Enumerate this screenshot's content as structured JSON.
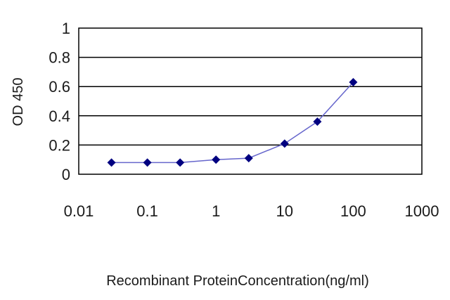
{
  "chart_data": {
    "type": "line",
    "xscale": "log",
    "xlabel": "Recombinant ProteinConcentration(ng/ml)",
    "ylabel": "OD 450",
    "xlim": [
      0.01,
      1000
    ],
    "ylim": [
      0,
      1
    ],
    "x_ticks": [
      {
        "value": 0.01,
        "label": "0.01"
      },
      {
        "value": 0.1,
        "label": "0.1"
      },
      {
        "value": 1,
        "label": "1"
      },
      {
        "value": 10,
        "label": "10"
      },
      {
        "value": 100,
        "label": "100"
      },
      {
        "value": 1000,
        "label": "1000"
      }
    ],
    "y_ticks": [
      {
        "value": 0,
        "label": "0"
      },
      {
        "value": 0.2,
        "label": "0.2"
      },
      {
        "value": 0.4,
        "label": "0.4"
      },
      {
        "value": 0.6,
        "label": "0.6"
      },
      {
        "value": 0.8,
        "label": "0.8"
      },
      {
        "value": 1,
        "label": "1"
      }
    ],
    "grid": "horizontal",
    "legend": "none",
    "series": [
      {
        "x": [
          0.03,
          0.1,
          0.3,
          1,
          3,
          10,
          30,
          100
        ],
        "y": [
          0.08,
          0.08,
          0.08,
          0.1,
          0.11,
          0.21,
          0.36,
          0.63
        ],
        "color": "#000080",
        "line_color": "#6666cc",
        "marker": "diamond"
      }
    ],
    "colors": {
      "plot_border": "#000000",
      "grid": "#000000"
    }
  }
}
